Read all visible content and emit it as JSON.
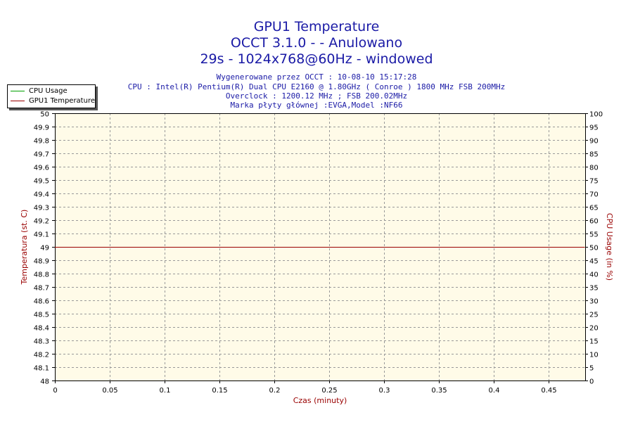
{
  "header": {
    "title_line1": "GPU1 Temperature",
    "title_line2": "OCCT 3.1.0 -  - Anulowano",
    "title_line3": "29s - 1024x768@60Hz - windowed",
    "info_line1": "Wygenerowane przez OCCT : 10-08-10 15:17:28",
    "info_line2": "CPU : Intel(R) Pentium(R) Dual CPU E2160 @ 1.80GHz ( Conroe ) 1800 MHz FSB 200MHz",
    "info_line3": "Overclock : 1200.12 MHz ; FSB 200.02MHz",
    "info_line4": "Marka płyty głównej :EVGA,Model :NF66"
  },
  "legend": {
    "items": [
      {
        "label": "CPU Usage",
        "color": "#00a000"
      },
      {
        "label": "GPU1 Temperature",
        "color": "#990000"
      }
    ]
  },
  "chart_data": {
    "type": "line",
    "xlabel": "Czas (minuty)",
    "ylabel_left": "Temperatura (st. C)",
    "ylabel_right": "CPU Usage (in %)",
    "xlim": [
      0,
      0.4833
    ],
    "ylim_left": [
      48,
      50
    ],
    "ylim_right": [
      0,
      100
    ],
    "x_ticks": [
      "0",
      "0.05",
      "0.1",
      "0.15",
      "0.2",
      "0.25",
      "0.3",
      "0.35",
      "0.4",
      "0.45"
    ],
    "x_tick_values": [
      0,
      0.05,
      0.1,
      0.15,
      0.2,
      0.25,
      0.3,
      0.35,
      0.4,
      0.45
    ],
    "y_left_ticks": [
      "48",
      "48.1",
      "48.2",
      "48.3",
      "48.4",
      "48.5",
      "48.6",
      "48.7",
      "48.8",
      "48.9",
      "49",
      "49.1",
      "49.2",
      "49.3",
      "49.4",
      "49.5",
      "49.6",
      "49.7",
      "49.8",
      "49.9",
      "50"
    ],
    "y_left_tick_values": [
      48,
      48.1,
      48.2,
      48.3,
      48.4,
      48.5,
      48.6,
      48.7,
      48.8,
      48.9,
      49,
      49.1,
      49.2,
      49.3,
      49.4,
      49.5,
      49.6,
      49.7,
      49.8,
      49.9,
      50
    ],
    "y_right_ticks": [
      "0",
      "5",
      "10",
      "15",
      "20",
      "25",
      "30",
      "35",
      "40",
      "45",
      "50",
      "55",
      "60",
      "65",
      "70",
      "75",
      "80",
      "85",
      "90",
      "95",
      "100"
    ],
    "y_right_tick_values": [
      0,
      5,
      10,
      15,
      20,
      25,
      30,
      35,
      40,
      45,
      50,
      55,
      60,
      65,
      70,
      75,
      80,
      85,
      90,
      95,
      100
    ],
    "grid": true,
    "legend_position": "top-left",
    "plot_background": "#fffbe8",
    "series": [
      {
        "name": "GPU1 Temperature",
        "axis": "left",
        "color": "#990000",
        "x": [
          0,
          0.483
        ],
        "y": [
          49,
          49
        ]
      },
      {
        "name": "CPU Usage",
        "axis": "right",
        "color": "#00a000",
        "x": [],
        "y": []
      }
    ]
  }
}
